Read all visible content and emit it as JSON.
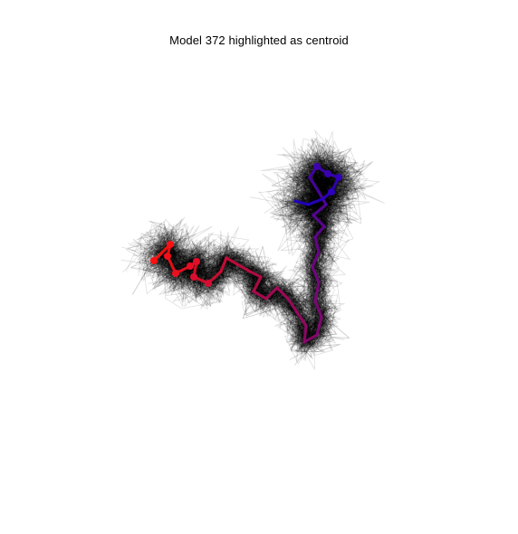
{
  "figure": {
    "title": "Model 372 highlighted as centroid"
  },
  "chart_data": {
    "type": "ensemble-structure-overlay",
    "title": "Model 372 highlighted as centroid",
    "highlighted_model": 372,
    "background_color": "#000000",
    "centroid_gradient": [
      "#ff1010",
      "#1a00cc"
    ],
    "axes_visible": false,
    "grid": false
  }
}
